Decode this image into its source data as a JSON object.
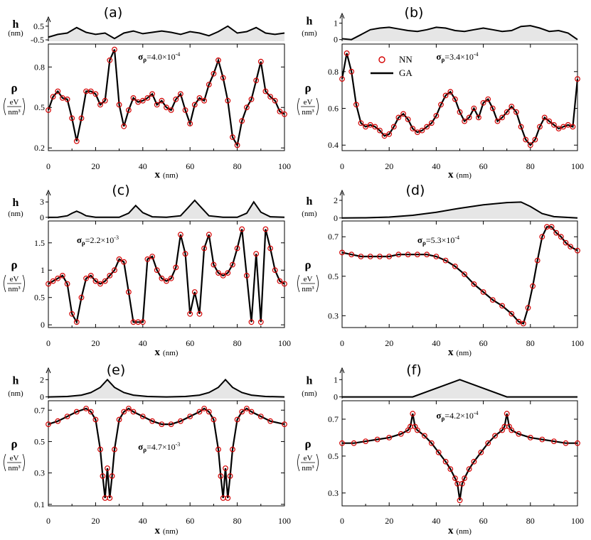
{
  "chart_data": [
    {
      "panel_label": "(a)",
      "type": "line",
      "sigma_text": "σ",
      "sigma_sub": "ρ",
      "sigma_value": "=4.0×10",
      "sigma_exp": "-4",
      "top": {
        "ylabel": "h",
        "yunit": "(nm)",
        "ylim": [
          -0.6,
          0.7
        ],
        "yticks": [
          0.5,
          -0.5
        ],
        "x": [
          0,
          4,
          8,
          12,
          16,
          20,
          24,
          28,
          32,
          36,
          40,
          44,
          48,
          52,
          56,
          60,
          64,
          68,
          72,
          76,
          80,
          84,
          88,
          92,
          96,
          100
        ],
        "h": [
          -0.3,
          -0.1,
          0.0,
          0.4,
          0.05,
          -0.1,
          0.0,
          -0.4,
          0.0,
          0.15,
          -0.05,
          0.05,
          0.15,
          0.05,
          -0.1,
          0.1,
          0.0,
          -0.2,
          0.1,
          0.5,
          0.0,
          0.1,
          0.4,
          0.0,
          -0.1,
          0.0
        ]
      },
      "bottom": {
        "ylabel": "ρ",
        "unit_num": "eV",
        "unit_den": "nm³",
        "ylim": [
          0.18,
          0.97
        ],
        "yticks": [
          0.2,
          0.5,
          0.8
        ],
        "x": [
          0,
          2,
          4,
          6,
          8,
          10,
          12,
          14,
          16,
          18,
          20,
          22,
          24,
          26,
          28,
          30,
          32,
          34,
          36,
          38,
          40,
          42,
          44,
          46,
          48,
          50,
          52,
          54,
          56,
          58,
          60,
          62,
          64,
          66,
          68,
          70,
          72,
          74,
          76,
          78,
          80,
          82,
          84,
          86,
          88,
          90,
          92,
          94,
          96,
          98,
          100
        ],
        "y": [
          0.48,
          0.58,
          0.62,
          0.57,
          0.56,
          0.42,
          0.25,
          0.42,
          0.62,
          0.62,
          0.6,
          0.52,
          0.55,
          0.85,
          0.93,
          0.52,
          0.36,
          0.48,
          0.57,
          0.54,
          0.55,
          0.57,
          0.6,
          0.52,
          0.55,
          0.5,
          0.48,
          0.56,
          0.6,
          0.48,
          0.38,
          0.52,
          0.57,
          0.55,
          0.67,
          0.75,
          0.85,
          0.72,
          0.55,
          0.28,
          0.22,
          0.4,
          0.5,
          0.56,
          0.7,
          0.84,
          0.62,
          0.58,
          0.55,
          0.47,
          0.45
        ],
        "xlabel": "x",
        "xunit": "(nm)",
        "xticks": [
          0,
          20,
          40,
          60,
          80,
          100
        ]
      },
      "legend": []
    },
    {
      "panel_label": "(b)",
      "type": "line",
      "sigma_text": "σ",
      "sigma_sub": "ρ",
      "sigma_value": "=3.4×10",
      "sigma_exp": "-4",
      "top": {
        "ylabel": "h",
        "yunit": "(nm)",
        "ylim": [
          -0.1,
          1.2
        ],
        "yticks": [
          1,
          0
        ],
        "x": [
          0,
          4,
          8,
          12,
          16,
          20,
          24,
          28,
          32,
          36,
          40,
          44,
          48,
          52,
          56,
          60,
          64,
          68,
          72,
          76,
          80,
          84,
          88,
          92,
          96,
          100
        ],
        "h": [
          0.05,
          0.0,
          0.3,
          0.6,
          0.7,
          0.75,
          0.65,
          0.55,
          0.5,
          0.6,
          0.75,
          0.7,
          0.55,
          0.5,
          0.6,
          0.7,
          0.6,
          0.5,
          0.55,
          0.8,
          0.85,
          0.7,
          0.5,
          0.55,
          0.4,
          0.0
        ]
      },
      "bottom": {
        "ylabel": "ρ",
        "unit_num": "eV",
        "unit_den": "nm³",
        "ylim": [
          0.37,
          0.95
        ],
        "yticks": [
          0.4,
          0.6,
          0.8
        ],
        "x": [
          0,
          2,
          4,
          6,
          8,
          10,
          12,
          14,
          16,
          18,
          20,
          22,
          24,
          26,
          28,
          30,
          32,
          34,
          36,
          38,
          40,
          42,
          44,
          46,
          48,
          50,
          52,
          54,
          56,
          58,
          60,
          62,
          64,
          66,
          68,
          70,
          72,
          74,
          76,
          78,
          80,
          82,
          84,
          86,
          88,
          90,
          92,
          94,
          96,
          98,
          100
        ],
        "y": [
          0.76,
          0.9,
          0.8,
          0.62,
          0.52,
          0.5,
          0.51,
          0.5,
          0.48,
          0.45,
          0.46,
          0.5,
          0.55,
          0.57,
          0.54,
          0.49,
          0.47,
          0.48,
          0.5,
          0.52,
          0.56,
          0.62,
          0.67,
          0.69,
          0.65,
          0.58,
          0.53,
          0.55,
          0.6,
          0.55,
          0.63,
          0.65,
          0.6,
          0.53,
          0.55,
          0.58,
          0.61,
          0.58,
          0.5,
          0.43,
          0.4,
          0.43,
          0.5,
          0.55,
          0.53,
          0.51,
          0.49,
          0.5,
          0.51,
          0.5,
          0.76
        ],
        "xlabel": "x",
        "xunit": "(nm)",
        "xticks": [
          0,
          20,
          40,
          60,
          80,
          100
        ]
      },
      "legend": [
        {
          "label": "NN",
          "kind": "marker"
        },
        {
          "label": "GA",
          "kind": "line"
        }
      ]
    },
    {
      "panel_label": "(c)",
      "type": "line",
      "sigma_text": "σ",
      "sigma_sub": "ρ",
      "sigma_value": "=2.2×10",
      "sigma_exp": "-3",
      "top": {
        "ylabel": "h",
        "yunit": "(nm)",
        "ylim": [
          -0.3,
          4.0
        ],
        "yticks": [
          3,
          0
        ],
        "x": [
          0,
          4,
          8,
          10,
          12,
          14,
          16,
          20,
          30,
          34,
          37,
          40,
          44,
          50,
          56,
          59,
          62,
          65,
          68,
          74,
          80,
          84,
          87,
          90,
          94,
          100
        ],
        "h": [
          0,
          0,
          0.3,
          0.8,
          1.2,
          0.8,
          0.3,
          0,
          0,
          0.8,
          2.3,
          0.9,
          0.1,
          0,
          0.3,
          1.8,
          3.3,
          1.8,
          0.3,
          0,
          0,
          0.8,
          3.0,
          1.0,
          0.1,
          0
        ]
      },
      "bottom": {
        "ylabel": "ρ",
        "unit_num": "eV",
        "unit_den": "nm³",
        "ylim": [
          -0.05,
          1.9
        ],
        "yticks": [
          0,
          0.5,
          1.0,
          1.5
        ],
        "x": [
          0,
          2,
          4,
          6,
          8,
          10,
          12,
          14,
          16,
          18,
          20,
          22,
          24,
          26,
          28,
          30,
          32,
          34,
          36,
          38,
          40,
          42,
          44,
          46,
          48,
          50,
          52,
          54,
          56,
          58,
          60,
          62,
          64,
          66,
          68,
          70,
          72,
          74,
          76,
          78,
          80,
          82,
          84,
          86,
          88,
          90,
          92,
          94,
          96,
          98,
          100
        ],
        "y": [
          0.75,
          0.8,
          0.85,
          0.9,
          0.75,
          0.2,
          0.05,
          0.5,
          0.85,
          0.9,
          0.8,
          0.75,
          0.8,
          0.9,
          1.0,
          1.2,
          1.15,
          0.6,
          0.05,
          0.05,
          0.05,
          1.2,
          1.25,
          1.0,
          0.85,
          0.8,
          0.85,
          1.05,
          1.65,
          1.3,
          0.2,
          0.6,
          0.2,
          1.4,
          1.65,
          1.1,
          0.95,
          0.9,
          0.95,
          1.1,
          1.4,
          1.75,
          0.9,
          0.05,
          1.3,
          0.05,
          1.75,
          1.4,
          1.0,
          0.8,
          0.75
        ],
        "xlabel": "x",
        "xunit": "(nm)",
        "xticks": [
          0,
          20,
          40,
          60,
          80,
          100
        ]
      },
      "legend": []
    },
    {
      "panel_label": "(d)",
      "type": "line",
      "sigma_text": "σ",
      "sigma_sub": "ρ",
      "sigma_value": "=5.3×10",
      "sigma_exp": "-4",
      "top": {
        "ylabel": "h",
        "yunit": "(nm)",
        "ylim": [
          -0.1,
          2.4
        ],
        "yticks": [
          2,
          0
        ],
        "x": [
          0,
          10,
          20,
          30,
          40,
          50,
          60,
          70,
          76,
          80,
          85,
          90,
          100
        ],
        "h": [
          0,
          0.02,
          0.1,
          0.3,
          0.65,
          1.1,
          1.5,
          1.75,
          1.8,
          1.3,
          0.5,
          0.15,
          0
        ]
      },
      "bottom": {
        "ylabel": "ρ",
        "unit_num": "eV",
        "unit_den": "nm³",
        "ylim": [
          0.24,
          0.78
        ],
        "yticks": [
          0.3,
          0.5,
          0.7
        ],
        "x": [
          0,
          4,
          8,
          12,
          16,
          20,
          24,
          28,
          32,
          36,
          40,
          44,
          48,
          52,
          56,
          60,
          64,
          68,
          72,
          75,
          77,
          79,
          81,
          83,
          85,
          87,
          89,
          91,
          93,
          95,
          97,
          100
        ],
        "y": [
          0.62,
          0.61,
          0.6,
          0.6,
          0.6,
          0.6,
          0.61,
          0.61,
          0.61,
          0.61,
          0.6,
          0.58,
          0.55,
          0.51,
          0.46,
          0.42,
          0.38,
          0.35,
          0.31,
          0.27,
          0.26,
          0.34,
          0.45,
          0.58,
          0.7,
          0.75,
          0.75,
          0.72,
          0.7,
          0.67,
          0.65,
          0.63
        ],
        "xlabel": "x",
        "xunit": "(nm)",
        "xticks": [
          0,
          20,
          40,
          60,
          80,
          100
        ]
      },
      "legend": []
    },
    {
      "panel_label": "(e)",
      "type": "line",
      "sigma_text": "σ",
      "sigma_sub": "ρ",
      "sigma_value": "=4.7×10",
      "sigma_exp": "-3",
      "top": {
        "ylabel": "h",
        "yunit": "(nm)",
        "ylim": [
          -0.2,
          2.6
        ],
        "yticks": [
          2,
          0
        ],
        "x": [
          0,
          8,
          14,
          18,
          22,
          25,
          28,
          32,
          36,
          42,
          50,
          58,
          64,
          68,
          72,
          75,
          78,
          82,
          86,
          92,
          100
        ],
        "h": [
          0,
          0.05,
          0.2,
          0.5,
          1.1,
          2.0,
          1.1,
          0.5,
          0.2,
          0.05,
          0,
          0.05,
          0.2,
          0.5,
          1.1,
          2.0,
          1.1,
          0.5,
          0.2,
          0.05,
          0
        ]
      },
      "bottom": {
        "ylabel": "ρ",
        "unit_num": "eV",
        "unit_den": "nm³",
        "ylim": [
          0.09,
          0.76
        ],
        "yticks": [
          0.1,
          0.3,
          0.5,
          0.7
        ],
        "x": [
          0,
          4,
          8,
          12,
          16,
          18,
          20,
          22,
          23,
          24,
          25,
          26,
          27,
          28,
          30,
          32,
          34,
          36,
          40,
          44,
          48,
          52,
          56,
          60,
          64,
          66,
          68,
          70,
          72,
          73,
          74,
          75,
          76,
          77,
          78,
          80,
          82,
          84,
          86,
          90,
          94,
          100
        ],
        "y": [
          0.61,
          0.63,
          0.66,
          0.69,
          0.71,
          0.69,
          0.64,
          0.45,
          0.28,
          0.14,
          0.33,
          0.14,
          0.28,
          0.45,
          0.64,
          0.69,
          0.71,
          0.69,
          0.66,
          0.63,
          0.61,
          0.61,
          0.63,
          0.66,
          0.69,
          0.71,
          0.69,
          0.64,
          0.45,
          0.28,
          0.14,
          0.33,
          0.14,
          0.28,
          0.45,
          0.64,
          0.69,
          0.71,
          0.69,
          0.66,
          0.63,
          0.61
        ],
        "xlabel": "x",
        "xunit": "(nm)",
        "xticks": [
          0,
          20,
          40,
          60,
          80,
          100
        ]
      },
      "legend": []
    },
    {
      "panel_label": "(f)",
      "type": "line",
      "sigma_text": "σ",
      "sigma_sub": "ρ",
      "sigma_value": "=4.2×10",
      "sigma_exp": "-4",
      "top": {
        "ylabel": "h",
        "yunit": "(nm)",
        "ylim": [
          -0.1,
          1.3
        ],
        "yticks": [
          1,
          0
        ],
        "x": [
          0,
          30,
          50,
          70,
          100
        ],
        "h": [
          0,
          0,
          1,
          0,
          0
        ]
      },
      "bottom": {
        "ylabel": "ρ",
        "unit_num": "eV",
        "unit_den": "nm³",
        "ylim": [
          0.23,
          0.8
        ],
        "yticks": [
          0.3,
          0.5,
          0.7
        ],
        "x": [
          0,
          5,
          10,
          15,
          20,
          25,
          28,
          29,
          30,
          31,
          32,
          35,
          38,
          41,
          44,
          46,
          48,
          49,
          50,
          51,
          52,
          54,
          56,
          59,
          62,
          65,
          68,
          69,
          70,
          71,
          72,
          75,
          80,
          85,
          90,
          95,
          100
        ],
        "y": [
          0.57,
          0.57,
          0.58,
          0.59,
          0.6,
          0.62,
          0.64,
          0.66,
          0.73,
          0.66,
          0.64,
          0.61,
          0.57,
          0.52,
          0.47,
          0.43,
          0.38,
          0.35,
          0.26,
          0.35,
          0.38,
          0.43,
          0.47,
          0.52,
          0.57,
          0.61,
          0.64,
          0.66,
          0.73,
          0.66,
          0.64,
          0.62,
          0.6,
          0.59,
          0.58,
          0.57,
          0.57
        ],
        "xlabel": "x",
        "xunit": "(nm)",
        "xticks": [
          0,
          20,
          40,
          60,
          80,
          100
        ]
      },
      "legend": []
    }
  ],
  "colors": {
    "marker": "#d40000",
    "line": "#000000",
    "fill": "#e6e6e6"
  }
}
